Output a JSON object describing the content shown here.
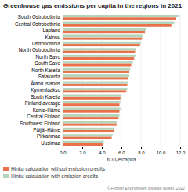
{
  "chart_data": {
    "type": "bar",
    "orientation": "horizontal",
    "title": "Greenhouse gas emissions per capita in the regions in 2021",
    "categories": [
      "South Ostrobothnia",
      "Central Ostrobothnia",
      "Lapland",
      "Kainuu",
      "Ostrobothnia",
      "North Ostrobothnia",
      "North Savo",
      "South Savo",
      "North Karelia",
      "Satakunta",
      "Åland Islands",
      "Kymenlaakso",
      "South Karelia",
      "Finland average",
      "Kanta-Häme",
      "Central Finland",
      "Southwest Finland",
      "Päijät-Häme",
      "Pirkanmaa",
      "Uusimaa"
    ],
    "series": [
      {
        "name": "Hinku calculation without emission credits",
        "color": "#e8704a",
        "values": [
          11.6,
          11.1,
          8.4,
          8.1,
          7.9,
          7.4,
          7.3,
          7.0,
          6.8,
          6.7,
          6.6,
          6.5,
          5.9,
          5.8,
          5.8,
          5.7,
          5.5,
          5.2,
          5.0,
          4.1
        ]
      },
      {
        "name": "Hinku calculation with emission credits",
        "color": "#b5d4bc",
        "values": [
          11.9,
          11.4,
          8.5,
          8.2,
          8.0,
          7.5,
          7.5,
          7.2,
          6.9,
          6.8,
          6.7,
          6.6,
          6.0,
          5.9,
          5.9,
          5.8,
          5.6,
          5.3,
          5.1,
          4.2
        ]
      }
    ],
    "xlabel": "tCO₂e/capita",
    "xlim": [
      0,
      12.0
    ],
    "xticks": [
      {
        "value": 0,
        "label": "0.0"
      },
      {
        "value": 2,
        "label": "2.0"
      },
      {
        "value": 4,
        "label": "4.0"
      },
      {
        "value": 6,
        "label": "6.0"
      },
      {
        "value": 8,
        "label": "8.0"
      },
      {
        "value": 10,
        "label": "10.0"
      },
      {
        "value": 12,
        "label": "12.0"
      }
    ],
    "grid": true,
    "legend": "lower left",
    "annotations": [
      "© Finnish Environment Institute (Syke), 2022"
    ]
  }
}
